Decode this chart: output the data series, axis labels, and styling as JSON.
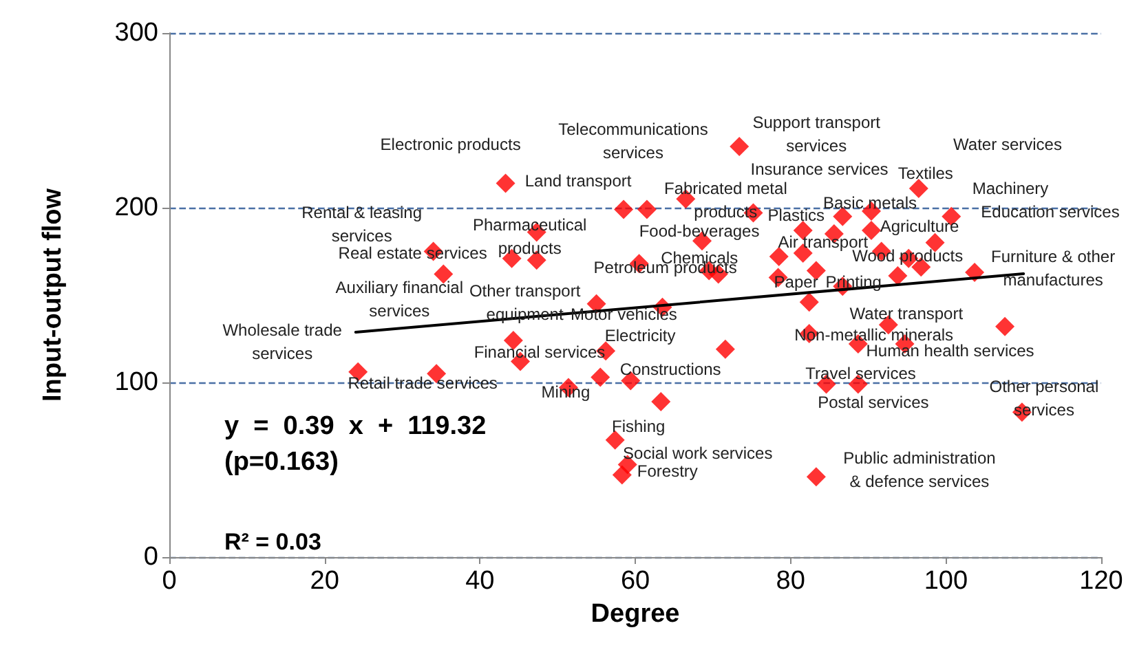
{
  "chart_data": {
    "type": "scatter",
    "xlabel": "Degree",
    "ylabel": "Input-output flow",
    "xlim": [
      0,
      120
    ],
    "xticks": [
      0,
      20,
      40,
      60,
      80,
      100,
      120
    ],
    "ylim": [
      0,
      300
    ],
    "yticks": [
      0,
      100,
      200,
      300
    ],
    "grid": "y",
    "marker": "diamond",
    "series": [
      {
        "color": "#ff0000",
        "x": [
          24.3,
          34.4,
          34.0,
          35.3,
          43.3,
          44.1,
          47.3,
          47.3,
          44.3,
          45.2,
          51.4,
          55.0,
          55.5,
          56.2,
          57.4,
          58.3,
          59.0,
          59.4,
          58.5,
          60.5,
          61.5,
          63.3,
          63.5,
          66.5,
          68.6,
          69.5,
          70.7,
          71.6,
          73.4,
          75.2,
          78.5,
          78.4,
          81.6,
          81.6,
          82.4,
          82.4,
          83.3,
          83.3,
          84.6,
          85.6,
          86.7,
          86.7,
          88.7,
          88.7,
          90.4,
          90.4,
          91.7,
          92.6,
          93.8,
          94.7,
          95.2,
          96.5,
          96.8,
          98.6,
          100.7,
          103.7,
          107.6,
          109.8
        ],
        "values": [
          106,
          105,
          175,
          162,
          214,
          171,
          170,
          186,
          124,
          112,
          97,
          145,
          103,
          118,
          67,
          47,
          53,
          101,
          199,
          168,
          199,
          89,
          143,
          205,
          181,
          164,
          162,
          119,
          235,
          197,
          172,
          160,
          187,
          174,
          146,
          128,
          164,
          46,
          99,
          185,
          195,
          155,
          122,
          99,
          198,
          187,
          175,
          133,
          161,
          122,
          171,
          211,
          166,
          180,
          195,
          163,
          132,
          83
        ]
      },
      {
        "type": "line",
        "color": "#000000",
        "marker": "none",
        "x": [
          24,
          110
        ],
        "values": [
          128.7,
          162.2
        ]
      }
    ],
    "annotations": [
      {
        "text": "Electronic products",
        "x": 43.3,
        "y": 214
      },
      {
        "text": "Land transport",
        "x": 58.5,
        "y": 199
      },
      {
        "text": "Telecommunications\nservices",
        "x": 61.5,
        "y": 199
      },
      {
        "text": "Support transport\nservices",
        "x": 73.4,
        "y": 235
      },
      {
        "text": "Insurance services",
        "x": 75.2,
        "y": 197
      },
      "Water services",
      {
        "text": "Textiles",
        "x": 96.5,
        "y": 211
      },
      "Machinery",
      "Education services",
      {
        "text": "Fabricated metal\nproducts",
        "x": 66.5,
        "y": 205
      },
      {
        "text": "Plastics",
        "x": 81.6,
        "y": 187
      },
      {
        "text": "Basic metals",
        "x": 90.4,
        "y": 198
      },
      {
        "text": "Agriculture",
        "x": 90.4,
        "y": 187
      },
      {
        "text": "Food-beverages",
        "x": 68.6,
        "y": 181
      },
      {
        "text": "Air transport",
        "x": 85.6,
        "y": 185
      },
      {
        "text": "Wood products",
        "x": 91.7,
        "y": 175
      },
      {
        "text": "Chemicals",
        "x": 69.5,
        "y": 164
      },
      {
        "text": "Petroleum products",
        "x": 60.5,
        "y": 168
      },
      {
        "text": "Paper",
        "x": 78.4,
        "y": 160
      },
      {
        "text": "Printing",
        "x": 86.7,
        "y": 155
      },
      {
        "text": "Furniture & other\nmanufactures",
        "x": 103.7,
        "y": 163
      },
      {
        "text": "Rental & leasing\nservices",
        "x": 34.0,
        "y": 175
      },
      {
        "text": "Pharmaceutical\nproducts",
        "x": 47.3,
        "y": 186
      },
      {
        "text": "Real estate services",
        "x": 44.1,
        "y": 171
      },
      {
        "text": "Auxiliary financial\nservices",
        "x": 35.3,
        "y": 162
      },
      {
        "text": "Other transport\nequipment",
        "x": 55.0,
        "y": 145
      },
      {
        "text": "Motor vehicles",
        "x": 63.5,
        "y": 143
      },
      {
        "text": "Electricity",
        "x": 56.2,
        "y": 118
      },
      {
        "text": "Wholesale trade\nservices",
        "x": 24.3,
        "y": 106
      },
      {
        "text": "Financial services",
        "x": 45.2,
        "y": 112
      },
      {
        "text": "Constructions",
        "x": 59.4,
        "y": 101
      },
      {
        "text": "Retail trade services",
        "x": 34.4,
        "y": 105
      },
      {
        "text": "Mining",
        "x": 51.4,
        "y": 97
      },
      {
        "text": "Fishing",
        "x": 57.4,
        "y": 67
      },
      {
        "text": "Social work services",
        "x": 59.0,
        "y": 53
      },
      {
        "text": "Forestry",
        "x": 58.3,
        "y": 47
      },
      {
        "text": "Water transport",
        "x": 92.6,
        "y": 133
      },
      {
        "text": "Non-metallic minerals",
        "x": 82.4,
        "y": 128
      },
      {
        "text": "Human health services",
        "x": 94.7,
        "y": 122
      },
      {
        "text": "Travel services",
        "x": 84.6,
        "y": 99
      },
      {
        "text": "Postal services",
        "x": 88.7,
        "y": 99
      },
      {
        "text": "Other personal\nservices",
        "x": 109.8,
        "y": 83
      },
      {
        "text": "Public administration\n& defence services",
        "x": 83.3,
        "y": 46
      },
      "y  =  0.39  x  +  119.32",
      "(p=0.163)",
      "R² = 0.03"
    ]
  }
}
